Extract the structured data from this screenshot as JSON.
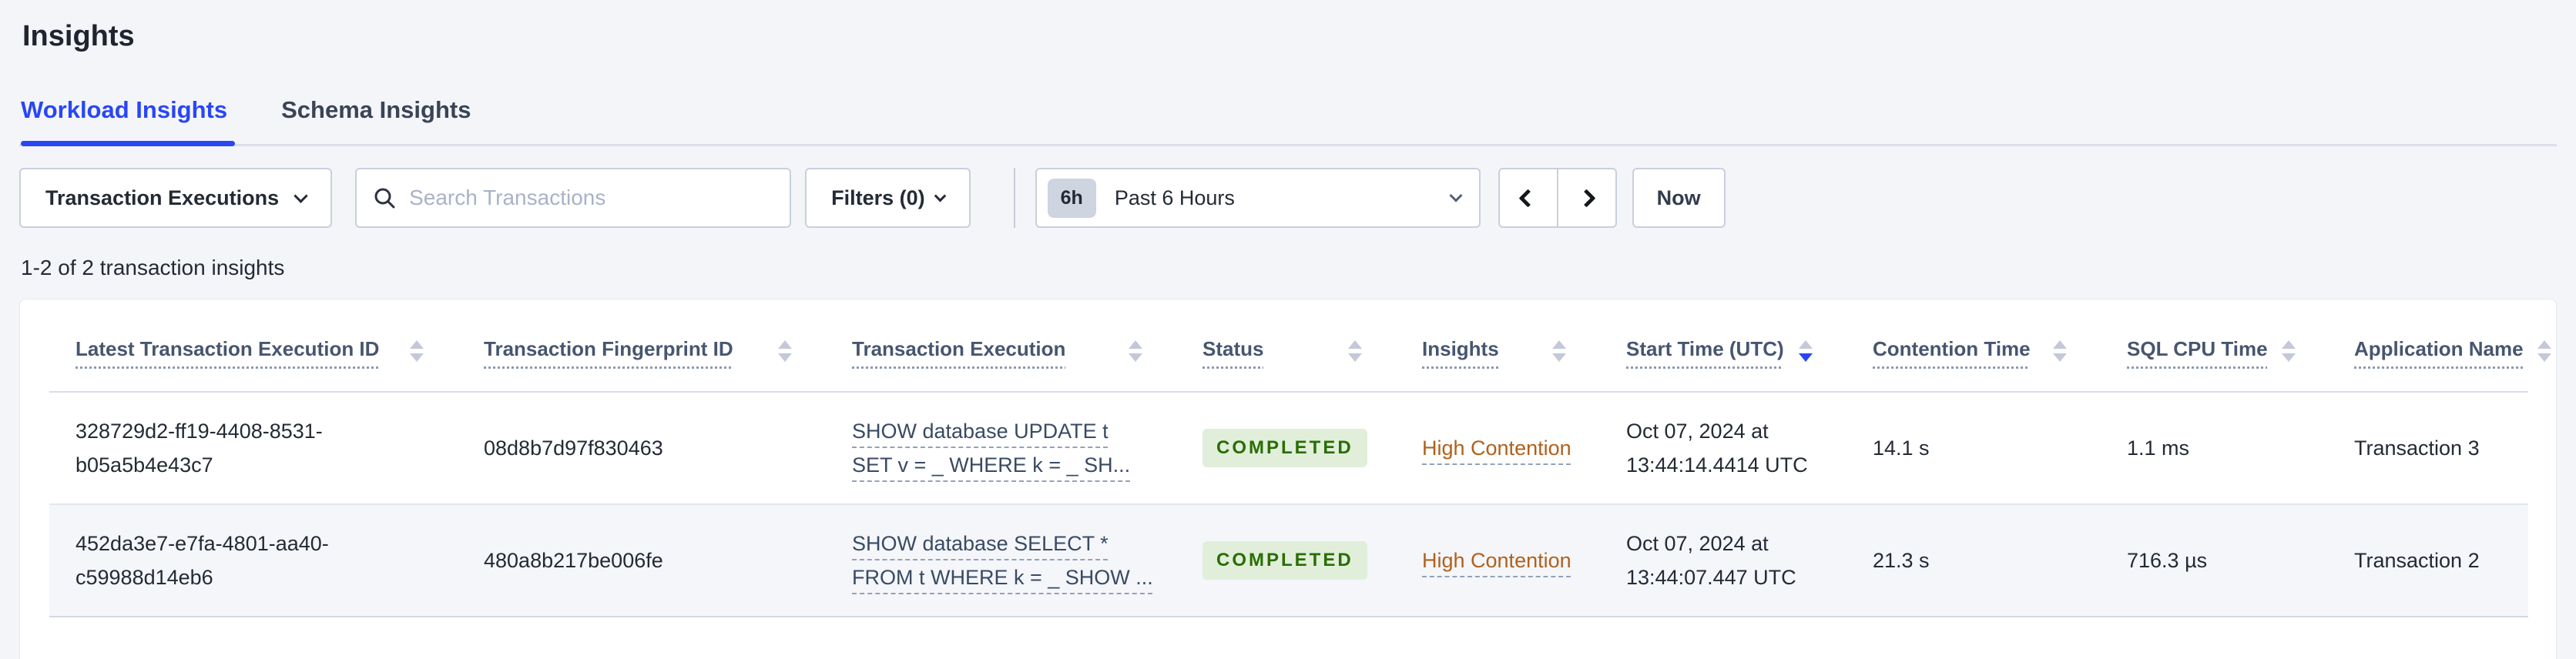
{
  "page": {
    "title": "Insights"
  },
  "tabs": [
    {
      "label": "Workload Insights",
      "active": true
    },
    {
      "label": "Schema Insights",
      "active": false
    }
  ],
  "toolbar": {
    "type_dropdown": {
      "label": "Transaction Executions"
    },
    "search": {
      "placeholder": "Search Transactions"
    },
    "filters": {
      "label": "Filters (0)"
    },
    "time_picker": {
      "badge": "6h",
      "label": "Past 6 Hours"
    },
    "now_label": "Now"
  },
  "results_summary": "1-2 of 2 transaction insights",
  "colors": {
    "accent_blue": "#2946f5",
    "status_completed_bg": "#e1efda",
    "status_completed_text": "#2a6d05",
    "insight_warning_text": "#b2601c",
    "page_background": "#f4f5f9"
  },
  "table": {
    "columns": [
      {
        "label": "Latest Transaction Execution ID",
        "sort": "none"
      },
      {
        "label": "Transaction Fingerprint ID",
        "sort": "none"
      },
      {
        "label": "Transaction Execution",
        "sort": "none"
      },
      {
        "label": "Status",
        "sort": "none"
      },
      {
        "label": "Insights",
        "sort": "none"
      },
      {
        "label": "Start Time (UTC)",
        "sort": "desc"
      },
      {
        "label": "Contention Time",
        "sort": "none"
      },
      {
        "label": "SQL CPU Time",
        "sort": "none"
      },
      {
        "label": "Application Name",
        "sort": "none"
      }
    ],
    "rows": [
      {
        "execution_id": "328729d2-ff19-4408-8531-b05a5b4e43c7",
        "fingerprint_id": "08d8b7d97f830463",
        "execution": "SHOW database UPDATE t SET v = _ WHERE k = _ SH...",
        "status": "COMPLETED",
        "insights": "High Contention",
        "start_time": "Oct 07, 2024 at 13:44:14.4414 UTC",
        "contention_time": "14.1 s",
        "sql_cpu_time": "1.1 ms",
        "application_name": "Transaction 3"
      },
      {
        "execution_id": "452da3e7-e7fa-4801-aa40-c59988d14eb6",
        "fingerprint_id": "480a8b217be006fe",
        "execution": "SHOW database SELECT * FROM t WHERE k = _ SHOW ...",
        "status": "COMPLETED",
        "insights": "High Contention",
        "start_time": "Oct 07, 2024 at 13:44:07.447 UTC",
        "contention_time": "21.3 s",
        "sql_cpu_time": "716.3 µs",
        "application_name": "Transaction 2"
      }
    ]
  }
}
